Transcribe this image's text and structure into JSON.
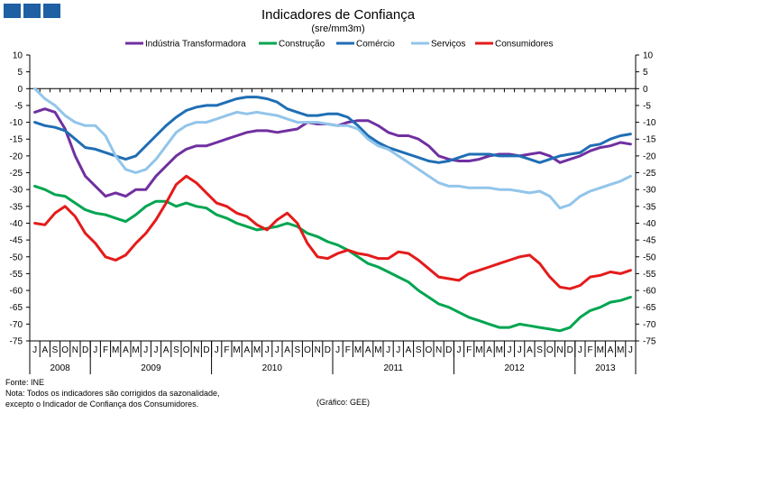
{
  "chart_data": {
    "type": "line",
    "title": "Indicadores de Confiança",
    "subtitle": "(sre/mm3m)",
    "ylim": [
      -75,
      10
    ],
    "yticks": [
      10,
      5,
      0,
      -5,
      -10,
      -15,
      -20,
      -25,
      -30,
      -35,
      -40,
      -45,
      -50,
      -55,
      -60,
      -65,
      -70,
      -75
    ],
    "legend_position": "top",
    "grid": false,
    "months": [
      "J",
      "A",
      "S",
      "O",
      "N",
      "D",
      "J",
      "F",
      "M",
      "A",
      "M",
      "J",
      "J",
      "A",
      "S",
      "O",
      "N",
      "D",
      "J",
      "F",
      "M",
      "A",
      "M",
      "J",
      "J",
      "A",
      "S",
      "O",
      "N",
      "D",
      "J",
      "F",
      "M",
      "A",
      "M",
      "J",
      "J",
      "A",
      "S",
      "O",
      "N",
      "D",
      "J",
      "F",
      "M",
      "A",
      "M",
      "J",
      "J",
      "A",
      "S",
      "O",
      "N",
      "D",
      "J",
      "F",
      "M",
      "A",
      "M",
      "J"
    ],
    "years": [
      {
        "label": "2008",
        "start": 0,
        "count": 6
      },
      {
        "label": "2009",
        "start": 6,
        "count": 12
      },
      {
        "label": "2010",
        "start": 18,
        "count": 12
      },
      {
        "label": "2011",
        "start": 30,
        "count": 12
      },
      {
        "label": "2012",
        "start": 42,
        "count": 12
      },
      {
        "label": "2013",
        "start": 54,
        "count": 6
      }
    ],
    "series": [
      {
        "name": "Indústria Transformadora",
        "color": "#7030a0",
        "values": [
          -7,
          -6,
          -7,
          -12,
          -20,
          -26,
          -29,
          -32,
          -31,
          -32,
          -30,
          -30,
          -26,
          -23,
          -20,
          -18,
          -17,
          -17,
          -16,
          -15,
          -14,
          -13,
          -12.5,
          -12.5,
          -13,
          -12.5,
          -12,
          -10,
          -10.5,
          -10.5,
          -11,
          -10,
          -9.5,
          -9.5,
          -11,
          -13,
          -14,
          -14,
          -15,
          -17,
          -20,
          -21,
          -21.5,
          -21.5,
          -21,
          -20,
          -19.5,
          -19.5,
          -20,
          -19.5,
          -19,
          -20,
          -22,
          -21,
          -20,
          -18.5,
          -17.5,
          -17,
          -16,
          -16.5
        ]
      },
      {
        "name": "Construção",
        "color": "#00a550",
        "values": [
          -29,
          -30,
          -31.5,
          -32,
          -34,
          -36,
          -37,
          -37.5,
          -38.5,
          -39.5,
          -37.5,
          -35,
          -33.5,
          -33.5,
          -35,
          -34,
          -35,
          -35.5,
          -37.5,
          -38.5,
          -40,
          -41,
          -42,
          -41.5,
          -41,
          -40,
          -41,
          -43,
          -44,
          -45.5,
          -46.5,
          -48,
          -50,
          -52,
          -53,
          -54.5,
          -56,
          -57.5,
          -60,
          -62,
          -64,
          -65,
          -66.5,
          -68,
          -69,
          -70,
          -71,
          -71,
          -70,
          -70.5,
          -71,
          -71.5,
          -72,
          -71,
          -68,
          -66,
          -65,
          -63.5,
          -63,
          -62
        ]
      },
      {
        "name": "Comércio",
        "color": "#1f6eb4",
        "values": [
          -10,
          -11,
          -11.5,
          -12.5,
          -15,
          -17.5,
          -18,
          -19,
          -20,
          -21,
          -20,
          -17,
          -14,
          -11,
          -8.5,
          -6.5,
          -5.5,
          -5,
          -5,
          -4,
          -3,
          -2.5,
          -2.5,
          -3,
          -4,
          -6,
          -7,
          -8,
          -8,
          -7.5,
          -7.5,
          -8.5,
          -11,
          -14,
          -16,
          -17.5,
          -18.5,
          -19.5,
          -20.5,
          -21.5,
          -22,
          -21.5,
          -20.5,
          -19.5,
          -19.5,
          -19.5,
          -20,
          -20,
          -20,
          -21,
          -22,
          -21,
          -20,
          -19.5,
          -19,
          -17,
          -16.5,
          -15,
          -14,
          -13.5
        ]
      },
      {
        "name": "Serviços",
        "color": "#92c5ea",
        "values": [
          0,
          -3,
          -5,
          -8,
          -10,
          -11,
          -11,
          -14,
          -20,
          -24,
          -25,
          -24,
          -21,
          -17,
          -13,
          -11,
          -10,
          -10,
          -9,
          -8,
          -7,
          -7.5,
          -7,
          -7.5,
          -8,
          -9,
          -10,
          -10,
          -10,
          -10.5,
          -11,
          -11,
          -12,
          -15,
          -17,
          -18,
          -20,
          -22,
          -24,
          -26,
          -28,
          -29,
          -29,
          -29.5,
          -29.5,
          -29.5,
          -30,
          -30,
          -30.5,
          -31,
          -30.5,
          -32,
          -35.5,
          -34.5,
          -32,
          -30.5,
          -29.5,
          -28.5,
          -27.5,
          -26
        ]
      },
      {
        "name": "Consumidores",
        "color": "#e41b1b",
        "values": [
          -40,
          -40.5,
          -37,
          -35,
          -38,
          -43,
          -46,
          -50,
          -51,
          -49.5,
          -46,
          -43,
          -39,
          -34,
          -28.5,
          -26,
          -28,
          -31,
          -34,
          -35,
          -37,
          -38,
          -40.5,
          -42,
          -39,
          -37,
          -40,
          -46,
          -50,
          -50.5,
          -49,
          -48,
          -49,
          -49.5,
          -50.5,
          -50.5,
          -48.5,
          -49,
          -51,
          -53.5,
          -56,
          -56.5,
          -57,
          -55,
          -54,
          -53,
          -52,
          -51,
          -50,
          -49.5,
          -52,
          -56,
          -59,
          -59.5,
          -58.5,
          -56,
          -55.5,
          -54.5,
          -55,
          -54
        ]
      }
    ]
  },
  "footer": {
    "source": "Fonte: INE",
    "note_line1": "Nota: Todos os indicadores são corrigidos da sazonalidade,",
    "note_line2": "excepto o Indicador de Confiança dos Consumidores.",
    "credit": "(Gráfico: GEE)"
  }
}
